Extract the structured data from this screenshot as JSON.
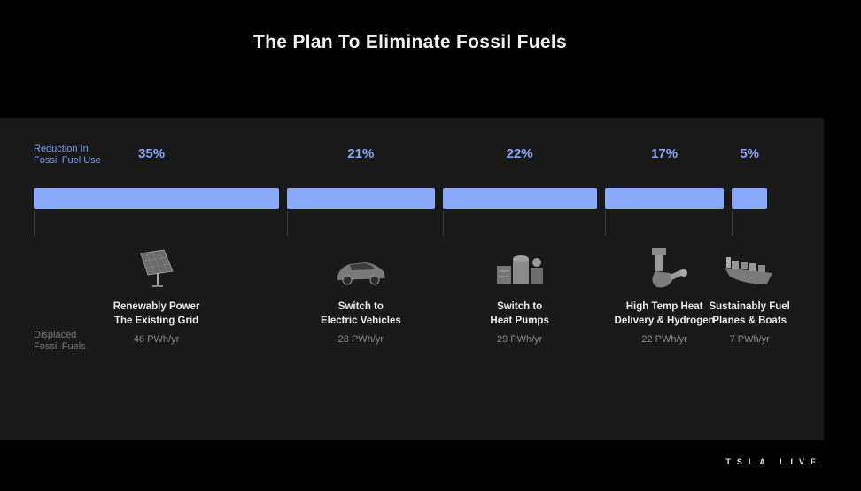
{
  "title": "The Plan To Eliminate Fossil Fuels",
  "row_labels": {
    "reduction_line1": "Reduction In",
    "reduction_line2": "Fossil Fuel Use",
    "displaced_line1": "Displaced",
    "displaced_line2": "Fossil Fuels"
  },
  "footer": "TSLA LIVE",
  "colors": {
    "bar": "#8aa9f8",
    "percent": "#8aa6f5",
    "background": "#000000",
    "panel": "#191919"
  },
  "chart_data": {
    "type": "bar",
    "orientation": "horizontal-stacked",
    "unit_reduction": "%",
    "unit_displaced": "PWh/yr",
    "segments": [
      {
        "percent_label": "35%",
        "value": 35,
        "name_line1": "Renewably Power",
        "name_line2": "The Existing Grid",
        "displaced_label": "46 PWh/yr",
        "displaced": 46,
        "icon": "solar-panel-icon"
      },
      {
        "percent_label": "21%",
        "value": 21,
        "name_line1": "Switch to",
        "name_line2": "Electric Vehicles",
        "displaced_label": "28 PWh/yr",
        "displaced": 28,
        "icon": "electric-car-icon"
      },
      {
        "percent_label": "22%",
        "value": 22,
        "name_line1": "Switch to",
        "name_line2": "Heat Pumps",
        "displaced_label": "29 PWh/yr",
        "displaced": 29,
        "icon": "heat-pump-icon"
      },
      {
        "percent_label": "17%",
        "value": 17,
        "name_line1": "High Temp Heat",
        "name_line2": "Delivery & Hydrogen",
        "displaced_label": "22 PWh/yr",
        "displaced": 22,
        "icon": "industrial-heat-icon"
      },
      {
        "percent_label": "5%",
        "value": 5,
        "name_line1": "Sustainably Fuel",
        "name_line2": "Planes & Boats",
        "displaced_label": "7 PWh/yr",
        "displaced": 7,
        "icon": "ship-icon"
      }
    ]
  }
}
